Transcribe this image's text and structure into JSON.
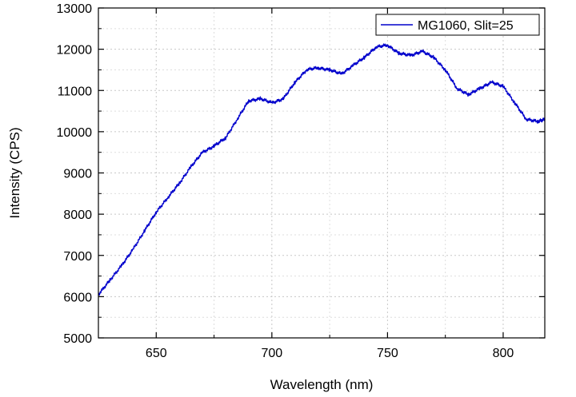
{
  "chart_data": {
    "type": "line",
    "title": "",
    "xlabel": "Wavelength (nm)",
    "ylabel": "Intensity (CPS)",
    "xlim": [
      625,
      818
    ],
    "ylim": [
      5000,
      13000
    ],
    "xticks": [
      650,
      700,
      750,
      800
    ],
    "yticks": [
      5000,
      6000,
      7000,
      8000,
      9000,
      10000,
      11000,
      12000,
      13000
    ],
    "grid": true,
    "legend_position": "top-right",
    "series": [
      {
        "name": "MG1060, Slit=25",
        "color": "#0000cc",
        "x": [
          625,
          630,
          635,
          640,
          645,
          650,
          655,
          660,
          665,
          670,
          675,
          680,
          685,
          690,
          695,
          700,
          705,
          710,
          715,
          720,
          725,
          730,
          735,
          740,
          745,
          750,
          755,
          760,
          765,
          770,
          775,
          780,
          785,
          790,
          795,
          800,
          805,
          810,
          815,
          818
        ],
        "y": [
          6050,
          6400,
          6750,
          7150,
          7600,
          8050,
          8400,
          8750,
          9150,
          9500,
          9650,
          9850,
          10300,
          10750,
          10800,
          10700,
          10800,
          11200,
          11500,
          11550,
          11500,
          11400,
          11600,
          11800,
          12050,
          12100,
          11900,
          11850,
          11950,
          11800,
          11500,
          11050,
          10900,
          11050,
          11200,
          11100,
          10700,
          10300,
          10250,
          10300
        ]
      }
    ]
  }
}
